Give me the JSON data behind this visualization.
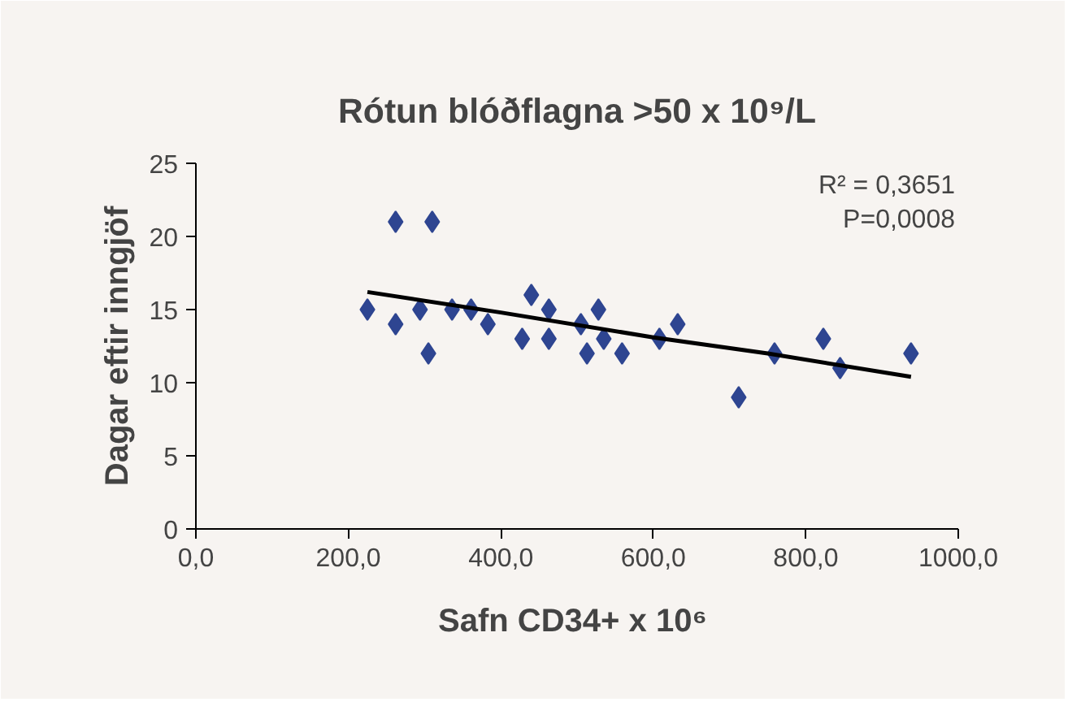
{
  "chart_data": {
    "type": "scatter",
    "title": "Rótun blóðflagna >50 x 10⁹/L",
    "xlabel": "Safn CD34+  x 10⁶",
    "ylabel": "Dagar eftir inngjöf",
    "xlim": [
      0,
      1000
    ],
    "xticks": [
      {
        "value": 0,
        "label": "0,0"
      },
      {
        "value": 200,
        "label": "200,0"
      },
      {
        "value": 400,
        "label": "400,0"
      },
      {
        "value": 600,
        "label": "600,0"
      },
      {
        "value": 800,
        "label": "800,0"
      },
      {
        "value": 1000,
        "label": "1000,0"
      }
    ],
    "ylim": [
      0,
      25
    ],
    "yticks": [
      0,
      5,
      10,
      15,
      20,
      25
    ],
    "grid": false,
    "annotations": [
      "R² = 0,3651",
      "P=0,0008"
    ],
    "series": [
      {
        "color": "#2e4591",
        "marker": "diamond",
        "x": [
          225,
          262,
          262,
          294,
          310,
          305,
          336,
          361,
          383,
          428,
          440,
          463,
          463,
          505,
          513,
          528,
          535,
          559,
          608,
          632,
          712,
          759,
          823,
          845,
          938
        ],
        "values": [
          15,
          21,
          14,
          15,
          21,
          12,
          15,
          15,
          14,
          13,
          16,
          15,
          13,
          14,
          12,
          15,
          13,
          12,
          13,
          14,
          9,
          12,
          13,
          11,
          12
        ]
      },
      {
        "type": "line",
        "color": "#000000",
        "x": [
          225,
          400,
          600,
          750,
          938
        ],
        "values": [
          16.2,
          14.8,
          13.1,
          12.0,
          10.4
        ]
      }
    ]
  }
}
